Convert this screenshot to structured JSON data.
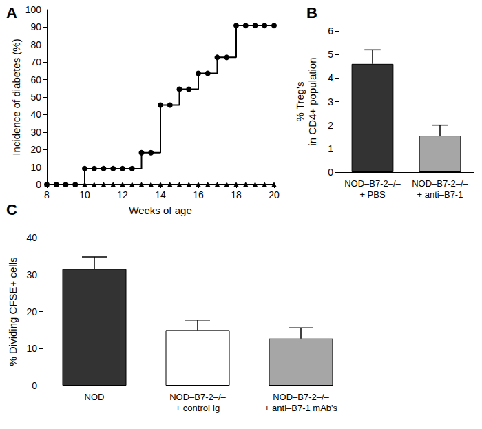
{
  "chart_data": [
    {
      "type": "line",
      "title": "A",
      "x": [
        8,
        8.5,
        9,
        9.5,
        10,
        10.5,
        11,
        11.5,
        12,
        12.5,
        13,
        13.5,
        14,
        14.5,
        15,
        15.5,
        16,
        16.5,
        17,
        17.5,
        18,
        18.5,
        19,
        19.5,
        20
      ],
      "series": [
        {
          "values": [
            0,
            0,
            0,
            0,
            9.1,
            9.1,
            9.1,
            9.1,
            9.1,
            9.1,
            18.2,
            18.2,
            45.5,
            45.5,
            54.5,
            54.5,
            63.6,
            63.6,
            72.7,
            72.7,
            90.9,
            90.9,
            90.9,
            90.9,
            90.9
          ],
          "marker": "circle",
          "color": "#000000",
          "line_style": "step"
        },
        {
          "values": [
            0,
            0,
            0,
            0,
            0,
            0,
            0,
            0,
            0,
            0,
            0,
            0,
            0,
            0,
            0,
            0,
            0,
            0,
            0,
            0,
            0,
            0,
            0,
            0,
            0
          ],
          "marker": "triangle",
          "color": "#000000",
          "line_style": "step"
        }
      ],
      "xlabel": "Weeks of age",
      "ylabel": "Incidence of diabetes (%)",
      "xlim": [
        8,
        20
      ],
      "xticks": [
        8,
        10,
        12,
        14,
        16,
        18,
        20
      ],
      "ylim": [
        0,
        100
      ],
      "yticks": [
        0,
        10,
        20,
        30,
        40,
        50,
        60,
        70,
        80,
        90,
        100
      ]
    },
    {
      "type": "bar",
      "title": "B",
      "categories": [
        "NOD–B7-2–/–\n+ PBS",
        "NOD–B7-2–/–\n+ anti–B7-1"
      ],
      "values": [
        4.6,
        1.55
      ],
      "errors": [
        0.6,
        0.45
      ],
      "colors": [
        "#333333",
        "#a6a6a6"
      ],
      "ylabel": "% Treg's\nin CD4+ population",
      "ylim": [
        0,
        6
      ],
      "yticks": [
        0,
        1,
        2,
        3,
        4,
        5,
        6
      ]
    },
    {
      "type": "bar",
      "title": "C",
      "categories": [
        "NOD",
        "NOD–B7-2–/–\n+ control Ig",
        "NOD–B7-2–/–\n+ anti–B7-1 mAb's"
      ],
      "values": [
        31.5,
        15,
        12.7
      ],
      "errors": [
        3.3,
        2.7,
        2.9
      ],
      "colors": [
        "#333333",
        "#ffffff",
        "#a6a6a6"
      ],
      "ylabel": "% Dividing CFSE+ cells",
      "ylim": [
        0,
        40
      ],
      "yticks": [
        0,
        10,
        20,
        30,
        40
      ]
    }
  ]
}
